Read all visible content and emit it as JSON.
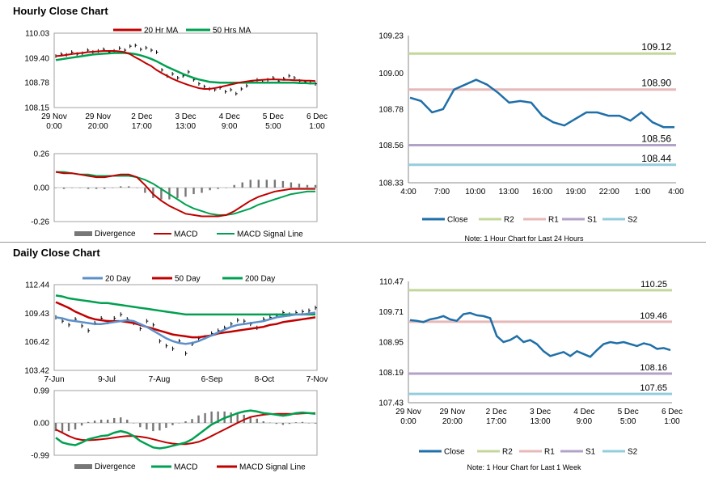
{
  "titles": {
    "hourly": "Hourly Close Chart",
    "daily": "Daily Close Chart"
  },
  "colors": {
    "ma20": "#c00000",
    "ma50h": "#00a050",
    "price": "#000000",
    "macd_red": "#c00000",
    "signal_green": "#00a050",
    "divergence": "#777777",
    "close": "#1f6fa8",
    "r2": "#c4d79b",
    "r1": "#e6b9b8",
    "s1": "#b3a2c7",
    "s2": "#93cddd",
    "d20": "#5b8fc9",
    "d50": "#c00000",
    "d200": "#00a050"
  },
  "chart_data": [
    {
      "id": "hourly_price",
      "type": "line",
      "legend": [
        "20 Hr MA",
        "50 Hrs MA"
      ],
      "y_ticks": [
        "110.03",
        "109.40",
        "108.78",
        "108.15"
      ],
      "ylim": [
        108.15,
        110.03
      ],
      "x_ticks": [
        [
          "29 Nov",
          "0:00"
        ],
        [
          "29 Nov",
          "20:00"
        ],
        [
          "2 Dec",
          "17:00"
        ],
        [
          "3 Dec",
          "13:00"
        ],
        [
          "4 Dec",
          "9:00"
        ],
        [
          "5 Dec",
          "5:00"
        ],
        [
          "6 Dec",
          "1:00"
        ]
      ],
      "price": [
        109.45,
        109.5,
        109.48,
        109.55,
        109.5,
        109.52,
        109.6,
        109.55,
        109.58,
        109.62,
        109.55,
        109.58,
        109.65,
        109.6,
        109.7,
        109.72,
        109.62,
        109.66,
        109.6,
        109.55,
        109.1,
        108.95,
        109.0,
        108.9,
        108.95,
        109.05,
        108.85,
        108.75,
        108.68,
        108.62,
        108.6,
        108.65,
        108.55,
        108.6,
        108.5,
        108.62,
        108.7,
        108.8,
        108.85,
        108.8,
        108.85,
        108.9,
        108.82,
        108.88,
        108.95,
        108.9,
        108.82,
        108.8,
        108.78,
        108.75
      ],
      "ma20": [
        109.45,
        109.46,
        109.48,
        109.5,
        109.52,
        109.53,
        109.55,
        109.56,
        109.57,
        109.58,
        109.58,
        109.58,
        109.57,
        109.55,
        109.5,
        109.42,
        109.35,
        109.27,
        109.2,
        109.1,
        109.02,
        108.95,
        108.88,
        108.82,
        108.77,
        108.72,
        108.68,
        108.64,
        108.62,
        108.62,
        108.64,
        108.67,
        108.7,
        108.73,
        108.76,
        108.79,
        108.81,
        108.83,
        108.84,
        108.85,
        108.86,
        108.86,
        108.86,
        108.85,
        108.85,
        108.84,
        108.84,
        108.83,
        108.83,
        108.82
      ],
      "ma50": [
        109.35,
        109.37,
        109.39,
        109.41,
        109.43,
        109.45,
        109.47,
        109.49,
        109.5,
        109.51,
        109.52,
        109.53,
        109.53,
        109.53,
        109.52,
        109.5,
        109.47,
        109.43,
        109.38,
        109.32,
        109.25,
        109.18,
        109.12,
        109.06,
        109.0,
        108.95,
        108.9,
        108.86,
        108.83,
        108.8,
        108.79,
        108.78,
        108.78,
        108.78,
        108.78,
        108.78,
        108.78,
        108.78,
        108.78,
        108.78,
        108.78,
        108.78,
        108.78,
        108.78,
        108.78,
        108.78,
        108.77,
        108.77,
        108.76,
        108.76
      ]
    },
    {
      "id": "hourly_macd",
      "type": "line",
      "legend": [
        "Divergence",
        "MACD",
        "MACD Signal Line"
      ],
      "y_ticks": [
        "0.26",
        "0.00",
        "-0.26"
      ],
      "ylim": [
        -0.26,
        0.26
      ],
      "macd": [
        0.12,
        0.11,
        0.11,
        0.1,
        0.09,
        0.08,
        0.08,
        0.09,
        0.1,
        0.1,
        0.08,
        0.02,
        -0.05,
        -0.1,
        -0.14,
        -0.17,
        -0.2,
        -0.21,
        -0.22,
        -0.22,
        -0.22,
        -0.21,
        -0.18,
        -0.14,
        -0.1,
        -0.07,
        -0.05,
        -0.03,
        -0.02,
        -0.01,
        -0.01,
        -0.01,
        -0.01
      ],
      "signal": [
        0.12,
        0.12,
        0.11,
        0.1,
        0.1,
        0.09,
        0.09,
        0.09,
        0.09,
        0.09,
        0.08,
        0.06,
        0.03,
        -0.01,
        -0.05,
        -0.09,
        -0.13,
        -0.16,
        -0.18,
        -0.2,
        -0.21,
        -0.21,
        -0.2,
        -0.18,
        -0.16,
        -0.13,
        -0.11,
        -0.09,
        -0.07,
        -0.05,
        -0.04,
        -0.03,
        -0.03
      ],
      "divergence": [
        0.0,
        -0.01,
        0.0,
        0.0,
        -0.01,
        -0.01,
        -0.01,
        0.0,
        0.01,
        0.01,
        0.0,
        -0.04,
        -0.08,
        -0.09,
        -0.09,
        -0.08,
        -0.07,
        -0.05,
        -0.04,
        -0.02,
        -0.01,
        0.0,
        0.02,
        0.04,
        0.06,
        0.06,
        0.06,
        0.06,
        0.05,
        0.04,
        0.03,
        0.02,
        0.02
      ]
    },
    {
      "id": "hourly_levels",
      "type": "line",
      "y_ticks": [
        "109.23",
        "109.00",
        "108.78",
        "108.56",
        "108.33"
      ],
      "ylim": [
        108.33,
        109.23
      ],
      "x_ticks": [
        "4:00",
        "7:00",
        "10:00",
        "13:00",
        "16:00",
        "19:00",
        "22:00",
        "1:00",
        "4:00"
      ],
      "close": [
        108.85,
        108.83,
        108.76,
        108.78,
        108.9,
        108.93,
        108.96,
        108.93,
        108.88,
        108.82,
        108.83,
        108.82,
        108.74,
        108.7,
        108.68,
        108.72,
        108.76,
        108.76,
        108.74,
        108.74,
        108.71,
        108.76,
        108.7,
        108.67,
        108.67
      ],
      "levels": {
        "R2": 109.12,
        "R1": 108.9,
        "S1": 108.56,
        "S2": 108.44
      },
      "level_labels": [
        "109.12",
        "108.90",
        "108.56",
        "108.44"
      ],
      "legend": [
        "Close",
        "R2",
        "R1",
        "S1",
        "S2"
      ],
      "note": "Note: 1 Hour Chart for Last 24 Hours"
    },
    {
      "id": "daily_price",
      "type": "line",
      "legend": [
        "20 Day",
        "50 Day",
        "200 Day"
      ],
      "y_ticks": [
        "112.44",
        "109.43",
        "106.42",
        "103.42"
      ],
      "ylim": [
        103.42,
        112.44
      ],
      "x_ticks": [
        "7-Jun",
        "9-Jul",
        "7-Aug",
        "6-Sep",
        "8-Oct",
        "7-Nov"
      ],
      "price": [
        109.0,
        108.6,
        108.2,
        108.8,
        108.1,
        107.6,
        108.4,
        108.9,
        108.5,
        108.9,
        109.3,
        108.8,
        108.4,
        107.8,
        108.6,
        108.2,
        106.5,
        106.0,
        105.7,
        106.5,
        105.2,
        106.2,
        106.8,
        106.9,
        107.3,
        107.6,
        107.9,
        108.3,
        108.7,
        108.6,
        108.3,
        107.9,
        108.8,
        109.0,
        109.2,
        109.5,
        109.3,
        109.5,
        109.6,
        109.7,
        110.0
      ],
      "d20": [
        109.0,
        108.9,
        108.7,
        108.6,
        108.5,
        108.4,
        108.3,
        108.3,
        108.4,
        108.5,
        108.6,
        108.7,
        108.6,
        108.3,
        108.0,
        107.6,
        107.2,
        106.8,
        106.5,
        106.3,
        106.2,
        106.3,
        106.5,
        106.8,
        107.1,
        107.4,
        107.7,
        108.0,
        108.2,
        108.3,
        108.4,
        108.5,
        108.6,
        108.8,
        109.0,
        109.1,
        109.2,
        109.3,
        109.3,
        109.4,
        109.5
      ],
      "d50": [
        110.6,
        110.3,
        110.0,
        109.6,
        109.3,
        109.0,
        108.8,
        108.7,
        108.6,
        108.6,
        108.6,
        108.5,
        108.4,
        108.2,
        108.0,
        107.8,
        107.6,
        107.4,
        107.2,
        107.1,
        107.0,
        106.9,
        106.9,
        107.0,
        107.1,
        107.3,
        107.4,
        107.5,
        107.6,
        107.7,
        107.8,
        107.9,
        108.0,
        108.2,
        108.3,
        108.5,
        108.6,
        108.7,
        108.8,
        108.9,
        109.0
      ],
      "d200": [
        111.3,
        111.2,
        111.0,
        110.9,
        110.8,
        110.7,
        110.6,
        110.5,
        110.5,
        110.4,
        110.3,
        110.2,
        110.1,
        110.0,
        109.9,
        109.8,
        109.7,
        109.6,
        109.5,
        109.4,
        109.3,
        109.3,
        109.3,
        109.3,
        109.3,
        109.3,
        109.3,
        109.3,
        109.3,
        109.3,
        109.3,
        109.3,
        109.3,
        109.3,
        109.3,
        109.3,
        109.3,
        109.3,
        109.3,
        109.3,
        109.3
      ]
    },
    {
      "id": "daily_macd",
      "type": "line",
      "legend": [
        "Divergence",
        "MACD",
        "MACD Signal Line"
      ],
      "y_ticks": [
        "0.99",
        "0.00",
        "-0.99"
      ],
      "ylim": [
        -0.99,
        0.99
      ],
      "macd": [
        -0.45,
        -0.6,
        -0.65,
        -0.68,
        -0.6,
        -0.5,
        -0.45,
        -0.4,
        -0.38,
        -0.3,
        -0.25,
        -0.3,
        -0.4,
        -0.55,
        -0.65,
        -0.75,
        -0.78,
        -0.75,
        -0.7,
        -0.65,
        -0.6,
        -0.5,
        -0.35,
        -0.2,
        -0.05,
        0.05,
        0.15,
        0.22,
        0.3,
        0.35,
        0.38,
        0.35,
        0.3,
        0.28,
        0.25,
        0.22,
        0.25,
        0.3,
        0.32,
        0.3,
        0.28
      ],
      "signal": [
        -0.2,
        -0.3,
        -0.4,
        -0.48,
        -0.52,
        -0.53,
        -0.52,
        -0.5,
        -0.48,
        -0.45,
        -0.42,
        -0.4,
        -0.4,
        -0.42,
        -0.45,
        -0.5,
        -0.55,
        -0.6,
        -0.63,
        -0.65,
        -0.65,
        -0.62,
        -0.58,
        -0.5,
        -0.4,
        -0.3,
        -0.2,
        -0.1,
        0.0,
        0.1,
        0.18,
        0.22,
        0.25,
        0.27,
        0.28,
        0.28,
        0.28,
        0.28,
        0.29,
        0.3,
        0.3
      ],
      "divergence": [
        -0.25,
        -0.3,
        -0.25,
        -0.2,
        -0.08,
        0.03,
        0.07,
        0.1,
        0.1,
        0.15,
        0.17,
        0.1,
        0.0,
        -0.13,
        -0.2,
        -0.25,
        -0.23,
        -0.15,
        -0.07,
        0.0,
        0.05,
        0.12,
        0.23,
        0.3,
        0.35,
        0.35,
        0.35,
        0.32,
        0.3,
        0.25,
        0.2,
        0.13,
        0.05,
        0.01,
        -0.03,
        -0.06,
        -0.03,
        0.02,
        0.03,
        0.0,
        -0.02
      ]
    },
    {
      "id": "daily_levels",
      "type": "line",
      "y_ticks": [
        "110.47",
        "109.71",
        "108.95",
        "108.19",
        "107.43"
      ],
      "ylim": [
        107.43,
        110.47
      ],
      "x_ticks": [
        [
          "29 Nov",
          "0:00"
        ],
        [
          "29 Nov",
          "20:00"
        ],
        [
          "2 Dec",
          "17:00"
        ],
        [
          "3 Dec",
          "13:00"
        ],
        [
          "4 Dec",
          "9:00"
        ],
        [
          "5 Dec",
          "5:00"
        ],
        [
          "6 Dec",
          "1:00"
        ]
      ],
      "close": [
        109.5,
        109.48,
        109.45,
        109.52,
        109.55,
        109.6,
        109.52,
        109.48,
        109.65,
        109.68,
        109.62,
        109.6,
        109.55,
        109.1,
        108.95,
        109.0,
        109.1,
        108.95,
        109.0,
        108.9,
        108.72,
        108.6,
        108.65,
        108.7,
        108.6,
        108.72,
        108.65,
        108.58,
        108.75,
        108.9,
        108.95,
        108.92,
        108.95,
        108.9,
        108.85,
        108.92,
        108.88,
        108.78,
        108.8,
        108.75
      ],
      "levels": {
        "R2": 110.25,
        "R1": 109.46,
        "S1": 108.16,
        "S2": 107.65
      },
      "level_labels": [
        "110.25",
        "109.46",
        "108.16",
        "107.65"
      ],
      "legend": [
        "Close",
        "R2",
        "R1",
        "S1",
        "S2"
      ],
      "note": "Note: 1 Hour Chart for Last 1 Week"
    }
  ]
}
